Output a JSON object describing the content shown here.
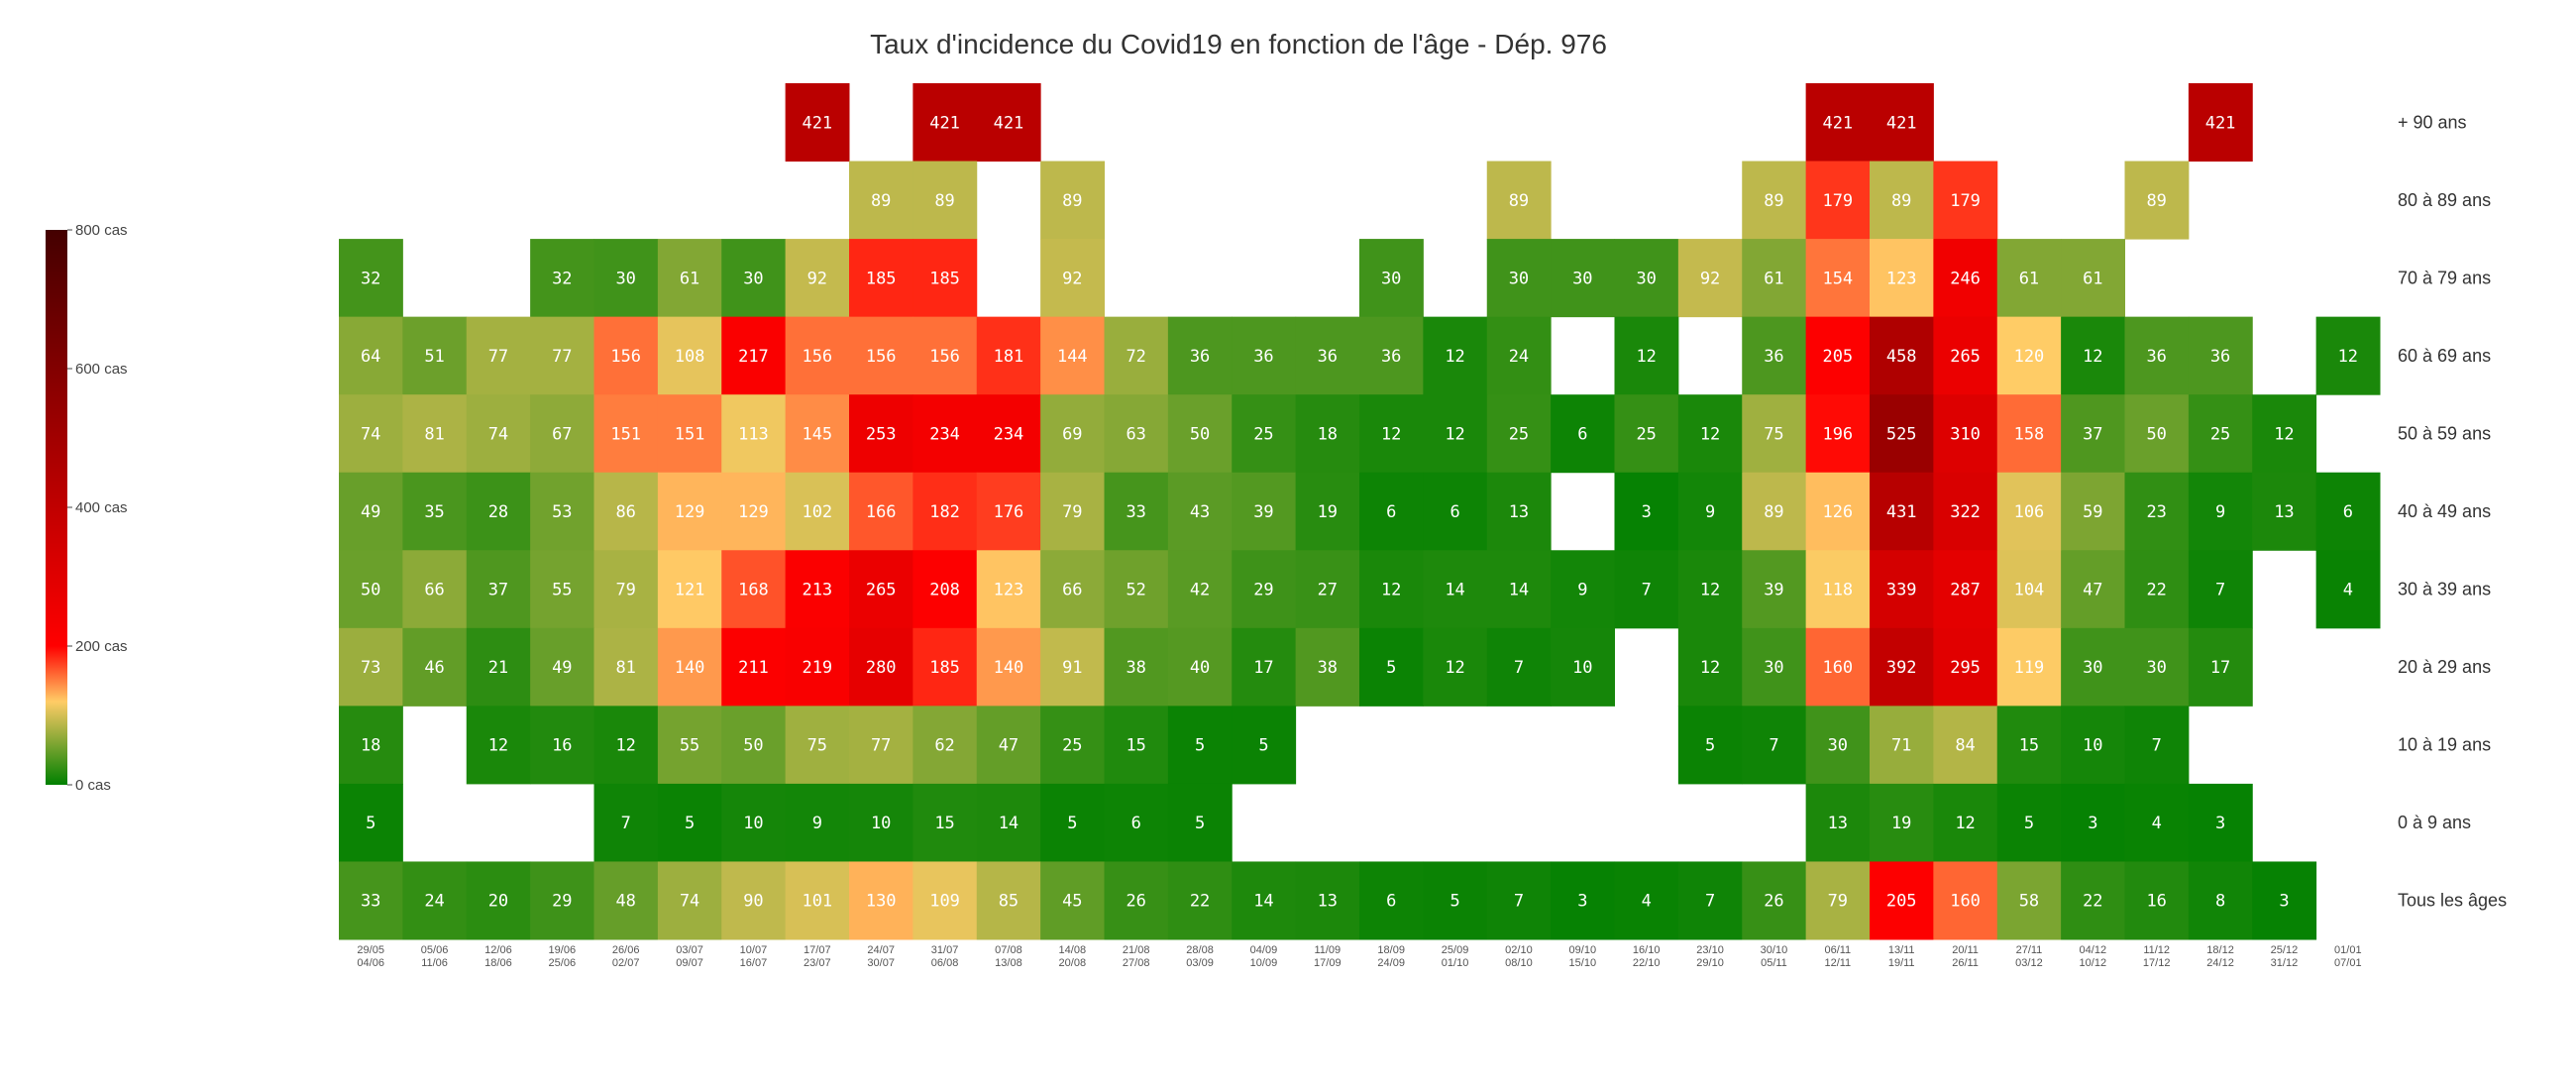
{
  "chart_data": {
    "type": "heatmap",
    "title": "Taux d'incidence du Covid19 en fonction de l'âge - Dép. 976",
    "x_ticks": [
      [
        "29/05",
        "04/06"
      ],
      [
        "05/06",
        "11/06"
      ],
      [
        "12/06",
        "18/06"
      ],
      [
        "19/06",
        "25/06"
      ],
      [
        "26/06",
        "02/07"
      ],
      [
        "03/07",
        "09/07"
      ],
      [
        "10/07",
        "16/07"
      ],
      [
        "17/07",
        "23/07"
      ],
      [
        "24/07",
        "30/07"
      ],
      [
        "31/07",
        "06/08"
      ],
      [
        "07/08",
        "13/08"
      ],
      [
        "14/08",
        "20/08"
      ],
      [
        "21/08",
        "27/08"
      ],
      [
        "28/08",
        "03/09"
      ],
      [
        "04/09",
        "10/09"
      ],
      [
        "11/09",
        "17/09"
      ],
      [
        "18/09",
        "24/09"
      ],
      [
        "25/09",
        "01/10"
      ],
      [
        "02/10",
        "08/10"
      ],
      [
        "09/10",
        "15/10"
      ],
      [
        "16/10",
        "22/10"
      ],
      [
        "23/10",
        "29/10"
      ],
      [
        "30/10",
        "05/11"
      ],
      [
        "06/11",
        "12/11"
      ],
      [
        "13/11",
        "19/11"
      ],
      [
        "20/11",
        "26/11"
      ],
      [
        "27/11",
        "03/12"
      ],
      [
        "04/12",
        "10/12"
      ],
      [
        "11/12",
        "17/12"
      ],
      [
        "18/12",
        "24/12"
      ],
      [
        "25/12",
        "31/12"
      ],
      [
        "01/01",
        "07/01"
      ]
    ],
    "rows": [
      {
        "label": "+ 90 ans",
        "values": [
          null,
          null,
          null,
          null,
          null,
          null,
          null,
          421,
          null,
          421,
          421,
          null,
          null,
          null,
          null,
          null,
          null,
          null,
          null,
          null,
          null,
          null,
          null,
          421,
          421,
          null,
          null,
          null,
          null,
          421,
          null,
          null
        ]
      },
      {
        "label": "80 à 89 ans",
        "values": [
          null,
          null,
          null,
          null,
          null,
          null,
          null,
          null,
          89,
          89,
          null,
          89,
          null,
          null,
          null,
          null,
          null,
          null,
          89,
          null,
          null,
          null,
          89,
          179,
          89,
          179,
          null,
          null,
          89,
          null,
          null,
          null
        ]
      },
      {
        "label": "70 à 79 ans",
        "values": [
          32,
          null,
          null,
          32,
          30,
          61,
          30,
          92,
          185,
          185,
          null,
          92,
          null,
          null,
          null,
          null,
          30,
          null,
          30,
          30,
          30,
          92,
          61,
          154,
          123,
          246,
          61,
          61,
          null,
          null,
          null,
          null
        ]
      },
      {
        "label": "60 à 69 ans",
        "values": [
          64,
          51,
          77,
          77,
          156,
          108,
          217,
          156,
          156,
          156,
          181,
          144,
          72,
          36,
          36,
          36,
          36,
          12,
          24,
          null,
          12,
          null,
          36,
          205,
          458,
          265,
          120,
          12,
          36,
          36,
          null,
          12
        ]
      },
      {
        "label": "50 à 59 ans",
        "values": [
          74,
          81,
          74,
          67,
          151,
          151,
          113,
          145,
          253,
          234,
          234,
          69,
          63,
          50,
          25,
          18,
          12,
          12,
          25,
          6,
          25,
          12,
          75,
          196,
          525,
          310,
          158,
          37,
          50,
          25,
          12,
          null
        ]
      },
      {
        "label": "40 à 49 ans",
        "values": [
          49,
          35,
          28,
          53,
          86,
          129,
          129,
          102,
          166,
          182,
          176,
          79,
          33,
          43,
          39,
          19,
          6,
          6,
          13,
          null,
          3,
          9,
          89,
          126,
          431,
          322,
          106,
          59,
          23,
          9,
          13,
          6
        ]
      },
      {
        "label": "30 à 39 ans",
        "values": [
          50,
          66,
          37,
          55,
          79,
          121,
          168,
          213,
          265,
          208,
          123,
          66,
          52,
          42,
          29,
          27,
          12,
          14,
          14,
          9,
          7,
          12,
          39,
          118,
          339,
          287,
          104,
          47,
          22,
          7,
          null,
          4
        ]
      },
      {
        "label": "20 à 29 ans",
        "values": [
          73,
          46,
          21,
          49,
          81,
          140,
          211,
          219,
          280,
          185,
          140,
          91,
          38,
          40,
          17,
          38,
          5,
          12,
          7,
          10,
          null,
          12,
          30,
          160,
          392,
          295,
          119,
          30,
          30,
          17,
          null,
          null
        ]
      },
      {
        "label": "10 à 19 ans",
        "values": [
          18,
          null,
          12,
          16,
          12,
          55,
          50,
          75,
          77,
          62,
          47,
          25,
          15,
          5,
          5,
          null,
          null,
          null,
          null,
          null,
          null,
          5,
          7,
          30,
          71,
          84,
          15,
          10,
          7,
          null,
          null,
          null
        ]
      },
      {
        "label": "0 à 9 ans",
        "values": [
          5,
          null,
          null,
          null,
          7,
          5,
          10,
          9,
          10,
          15,
          14,
          5,
          6,
          5,
          null,
          null,
          null,
          null,
          null,
          null,
          null,
          null,
          null,
          13,
          19,
          12,
          5,
          3,
          4,
          3,
          null,
          null
        ]
      },
      {
        "label": "Tous les âges",
        "values": [
          33,
          24,
          20,
          29,
          48,
          74,
          90,
          101,
          130,
          109,
          85,
          45,
          26,
          22,
          14,
          13,
          6,
          5,
          7,
          3,
          4,
          7,
          26,
          79,
          205,
          160,
          58,
          22,
          16,
          8,
          3,
          null
        ]
      }
    ],
    "colorbar": {
      "min": 0,
      "max": 800,
      "ticks": [
        0,
        200,
        400,
        600,
        800
      ],
      "tick_labels": [
        "0 cas",
        "200 cas",
        "400 cas",
        "600 cas",
        "800 cas"
      ],
      "colorscale": [
        [
          0,
          "#008000"
        ],
        [
          0.15,
          "#ffcc66"
        ],
        [
          0.25,
          "#ff0000"
        ],
        [
          1,
          "#440000"
        ]
      ]
    }
  }
}
